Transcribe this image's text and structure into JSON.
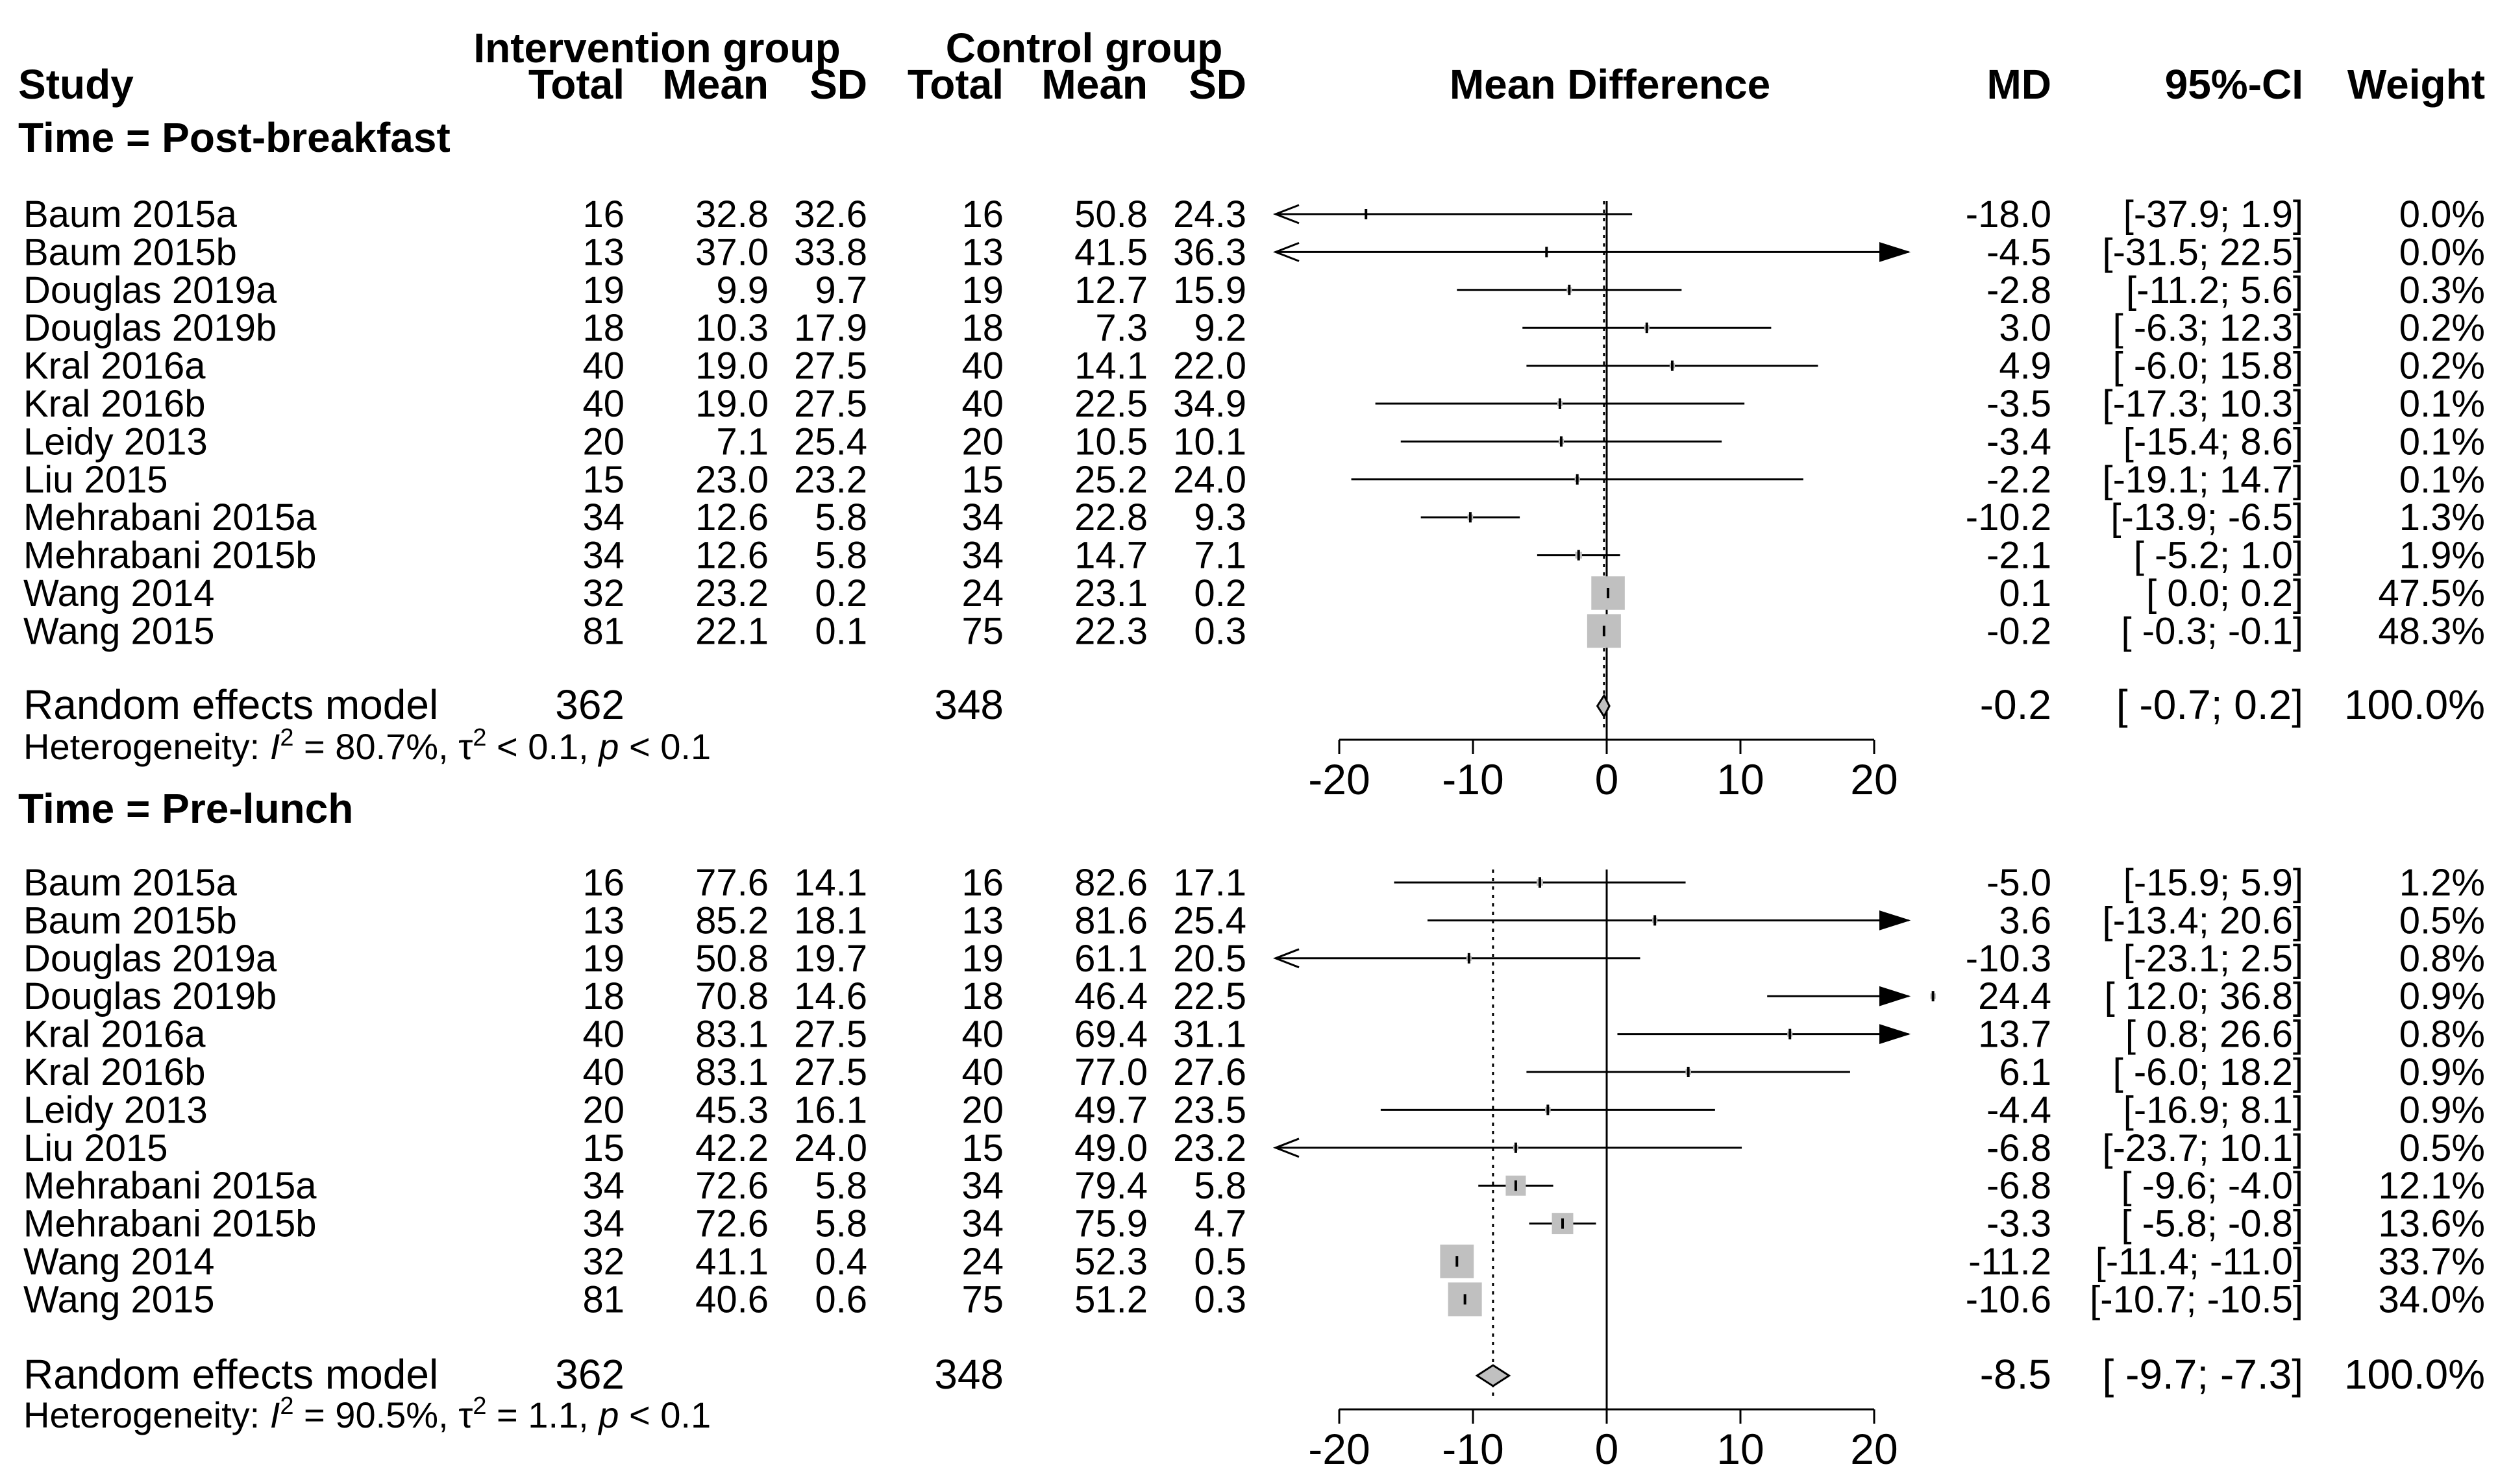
{
  "headers": {
    "study": "Study",
    "intervention_group": "Intervention group",
    "control_group": "Control group",
    "total": "Total",
    "mean": "Mean",
    "sd": "SD",
    "mean_difference": "Mean Difference",
    "md": "MD",
    "ci": "95%-CI",
    "weight": "Weight"
  },
  "colors": {
    "square": "#c0c0c0",
    "diamond": "#c0c0c0",
    "line": "#000000"
  },
  "chart_data": {
    "type": "forest",
    "xlim": [
      -20,
      20
    ],
    "xticks": [
      -20,
      -10,
      0,
      10,
      20
    ],
    "xtick_labels": [
      "-20",
      "-10",
      "0",
      "10",
      "20"
    ],
    "subgroups": [
      {
        "label": "Time = Post-breakfast",
        "studies": [
          {
            "study": "Baum 2015a",
            "i_total": "16",
            "i_mean": "32.8",
            "i_sd": "32.6",
            "c_total": "16",
            "c_mean": "50.8",
            "c_sd": "24.3",
            "md": -18.0,
            "lo": -37.9,
            "hi": 1.9,
            "md_text": "-18.0",
            "ci_text": "[-37.9;  1.9]",
            "weight": "0.0%"
          },
          {
            "study": "Baum 2015b",
            "i_total": "13",
            "i_mean": "37.0",
            "i_sd": "33.8",
            "c_total": "13",
            "c_mean": "41.5",
            "c_sd": "36.3",
            "md": -4.5,
            "lo": -31.5,
            "hi": 22.5,
            "md_text": "-4.5",
            "ci_text": "[-31.5; 22.5]",
            "weight": "0.0%"
          },
          {
            "study": "Douglas 2019a",
            "i_total": "19",
            "i_mean": "9.9",
            "i_sd": "9.7",
            "c_total": "19",
            "c_mean": "12.7",
            "c_sd": "15.9",
            "md": -2.8,
            "lo": -11.2,
            "hi": 5.6,
            "md_text": "-2.8",
            "ci_text": "[-11.2;  5.6]",
            "weight": "0.3%"
          },
          {
            "study": "Douglas 2019b",
            "i_total": "18",
            "i_mean": "10.3",
            "i_sd": "17.9",
            "c_total": "18",
            "c_mean": "7.3",
            "c_sd": "9.2",
            "md": 3.0,
            "lo": -6.3,
            "hi": 12.3,
            "md_text": "3.0",
            "ci_text": "[ -6.3; 12.3]",
            "weight": "0.2%"
          },
          {
            "study": "Kral 2016a",
            "i_total": "40",
            "i_mean": "19.0",
            "i_sd": "27.5",
            "c_total": "40",
            "c_mean": "14.1",
            "c_sd": "22.0",
            "md": 4.9,
            "lo": -6.0,
            "hi": 15.8,
            "md_text": "4.9",
            "ci_text": "[ -6.0; 15.8]",
            "weight": "0.2%"
          },
          {
            "study": "Kral 2016b",
            "i_total": "40",
            "i_mean": "19.0",
            "i_sd": "27.5",
            "c_total": "40",
            "c_mean": "22.5",
            "c_sd": "34.9",
            "md": -3.5,
            "lo": -17.3,
            "hi": 10.3,
            "md_text": "-3.5",
            "ci_text": "[-17.3; 10.3]",
            "weight": "0.1%"
          },
          {
            "study": "Leidy 2013",
            "i_total": "20",
            "i_mean": "7.1",
            "i_sd": "25.4",
            "c_total": "20",
            "c_mean": "10.5",
            "c_sd": "10.1",
            "md": -3.4,
            "lo": -15.4,
            "hi": 8.6,
            "md_text": "-3.4",
            "ci_text": "[-15.4;  8.6]",
            "weight": "0.1%"
          },
          {
            "study": "Liu 2015",
            "i_total": "15",
            "i_mean": "23.0",
            "i_sd": "23.2",
            "c_total": "15",
            "c_mean": "25.2",
            "c_sd": "24.0",
            "md": -2.2,
            "lo": -19.1,
            "hi": 14.7,
            "md_text": "-2.2",
            "ci_text": "[-19.1; 14.7]",
            "weight": "0.1%"
          },
          {
            "study": "Mehrabani 2015a",
            "i_total": "34",
            "i_mean": "12.6",
            "i_sd": "5.8",
            "c_total": "34",
            "c_mean": "22.8",
            "c_sd": "9.3",
            "md": -10.2,
            "lo": -13.9,
            "hi": -6.5,
            "md_text": "-10.2",
            "ci_text": "[-13.9; -6.5]",
            "weight": "1.3%"
          },
          {
            "study": "Mehrabani 2015b",
            "i_total": "34",
            "i_mean": "12.6",
            "i_sd": "5.8",
            "c_total": "34",
            "c_mean": "14.7",
            "c_sd": "7.1",
            "md": -2.1,
            "lo": -5.2,
            "hi": 1.0,
            "md_text": "-2.1",
            "ci_text": "[ -5.2;  1.0]",
            "weight": "1.9%"
          },
          {
            "study": "Wang 2014",
            "i_total": "32",
            "i_mean": "23.2",
            "i_sd": "0.2",
            "c_total": "24",
            "c_mean": "23.1",
            "c_sd": "0.2",
            "md": 0.1,
            "lo": 0.0,
            "hi": 0.2,
            "md_text": "0.1",
            "ci_text": "[  0.0;  0.2]",
            "weight": "47.5%"
          },
          {
            "study": "Wang 2015",
            "i_total": "81",
            "i_mean": "22.1",
            "i_sd": "0.1",
            "c_total": "75",
            "c_mean": "22.3",
            "c_sd": "0.3",
            "md": -0.2,
            "lo": -0.3,
            "hi": -0.1,
            "md_text": "-0.2",
            "ci_text": "[ -0.3; -0.1]",
            "weight": "48.3%"
          }
        ],
        "summary": {
          "label": "Random effects model",
          "i_total": "362",
          "c_total": "348",
          "md": -0.2,
          "lo": -0.7,
          "hi": 0.2,
          "md_text": "-0.2",
          "ci_text": "[ -0.7;  0.2]",
          "weight": "100.0%"
        },
        "heterogeneity": {
          "prefix": "Heterogeneity: ",
          "i2": "I",
          "i2_exp": "2",
          "i2_val": " = 80.7%, ",
          "tau": "τ",
          "tau_exp": "2",
          "tau_val": " < 0.1, ",
          "p": "p",
          "p_val": " < 0.1"
        }
      },
      {
        "label": "Time = Pre-lunch",
        "studies": [
          {
            "study": "Baum 2015a",
            "i_total": "16",
            "i_mean": "77.6",
            "i_sd": "14.1",
            "c_total": "16",
            "c_mean": "82.6",
            "c_sd": "17.1",
            "md": -5.0,
            "lo": -15.9,
            "hi": 5.9,
            "md_text": "-5.0",
            "ci_text": "[-15.9;  5.9]",
            "weight": "1.2%"
          },
          {
            "study": "Baum 2015b",
            "i_total": "13",
            "i_mean": "85.2",
            "i_sd": "18.1",
            "c_total": "13",
            "c_mean": "81.6",
            "c_sd": "25.4",
            "md": 3.6,
            "lo": -13.4,
            "hi": 20.6,
            "md_text": "3.6",
            "ci_text": "[-13.4; 20.6]",
            "weight": "0.5%"
          },
          {
            "study": "Douglas 2019a",
            "i_total": "19",
            "i_mean": "50.8",
            "i_sd": "19.7",
            "c_total": "19",
            "c_mean": "61.1",
            "c_sd": "20.5",
            "md": -10.3,
            "lo": -23.1,
            "hi": 2.5,
            "md_text": "-10.3",
            "ci_text": "[-23.1;  2.5]",
            "weight": "0.8%"
          },
          {
            "study": "Douglas 2019b",
            "i_total": "18",
            "i_mean": "70.8",
            "i_sd": "14.6",
            "c_total": "18",
            "c_mean": "46.4",
            "c_sd": "22.5",
            "md": 24.4,
            "lo": 12.0,
            "hi": 36.8,
            "md_text": "24.4",
            "ci_text": "[ 12.0; 36.8]",
            "weight": "0.9%"
          },
          {
            "study": "Kral 2016a",
            "i_total": "40",
            "i_mean": "83.1",
            "i_sd": "27.5",
            "c_total": "40",
            "c_mean": "69.4",
            "c_sd": "31.1",
            "md": 13.7,
            "lo": 0.8,
            "hi": 26.6,
            "md_text": "13.7",
            "ci_text": "[  0.8; 26.6]",
            "weight": "0.8%"
          },
          {
            "study": "Kral 2016b",
            "i_total": "40",
            "i_mean": "83.1",
            "i_sd": "27.5",
            "c_total": "40",
            "c_mean": "77.0",
            "c_sd": "27.6",
            "md": 6.1,
            "lo": -6.0,
            "hi": 18.2,
            "md_text": "6.1",
            "ci_text": "[ -6.0; 18.2]",
            "weight": "0.9%"
          },
          {
            "study": "Leidy 2013",
            "i_total": "20",
            "i_mean": "45.3",
            "i_sd": "16.1",
            "c_total": "20",
            "c_mean": "49.7",
            "c_sd": "23.5",
            "md": -4.4,
            "lo": -16.9,
            "hi": 8.1,
            "md_text": "-4.4",
            "ci_text": "[-16.9;  8.1]",
            "weight": "0.9%"
          },
          {
            "study": "Liu 2015",
            "i_total": "15",
            "i_mean": "42.2",
            "i_sd": "24.0",
            "c_total": "15",
            "c_mean": "49.0",
            "c_sd": "23.2",
            "md": -6.8,
            "lo": -23.7,
            "hi": 10.1,
            "md_text": "-6.8",
            "ci_text": "[-23.7; 10.1]",
            "weight": "0.5%"
          },
          {
            "study": "Mehrabani 2015a",
            "i_total": "34",
            "i_mean": "72.6",
            "i_sd": "5.8",
            "c_total": "34",
            "c_mean": "79.4",
            "c_sd": "5.8",
            "md": -6.8,
            "lo": -9.6,
            "hi": -4.0,
            "md_text": "-6.8",
            "ci_text": "[ -9.6; -4.0]",
            "weight": "12.1%"
          },
          {
            "study": "Mehrabani 2015b",
            "i_total": "34",
            "i_mean": "72.6",
            "i_sd": "5.8",
            "c_total": "34",
            "c_mean": "75.9",
            "c_sd": "4.7",
            "md": -3.3,
            "lo": -5.8,
            "hi": -0.8,
            "md_text": "-3.3",
            "ci_text": "[ -5.8; -0.8]",
            "weight": "13.6%"
          },
          {
            "study": "Wang 2014",
            "i_total": "32",
            "i_mean": "41.1",
            "i_sd": "0.4",
            "c_total": "24",
            "c_mean": "52.3",
            "c_sd": "0.5",
            "md": -11.2,
            "lo": -11.4,
            "hi": -11.0,
            "md_text": "-11.2",
            "ci_text": "[-11.4; -11.0]",
            "weight": "33.7%"
          },
          {
            "study": "Wang 2015",
            "i_total": "81",
            "i_mean": "40.6",
            "i_sd": "0.6",
            "c_total": "75",
            "c_mean": "51.2",
            "c_sd": "0.3",
            "md": -10.6,
            "lo": -10.7,
            "hi": -10.5,
            "md_text": "-10.6",
            "ci_text": "[-10.7; -10.5]",
            "weight": "34.0%"
          }
        ],
        "summary": {
          "label": "Random effects model",
          "i_total": "362",
          "c_total": "348",
          "md": -8.5,
          "lo": -9.7,
          "hi": -7.3,
          "md_text": "-8.5",
          "ci_text": "[ -9.7; -7.3]",
          "weight": "100.0%"
        },
        "heterogeneity": {
          "prefix": "Heterogeneity: ",
          "i2": "I",
          "i2_exp": "2",
          "i2_val": " = 90.5%, ",
          "tau": "τ",
          "tau_exp": "2",
          "tau_val": " = 1.1, ",
          "p": "p",
          "p_val": " < 0.1"
        }
      }
    ]
  }
}
